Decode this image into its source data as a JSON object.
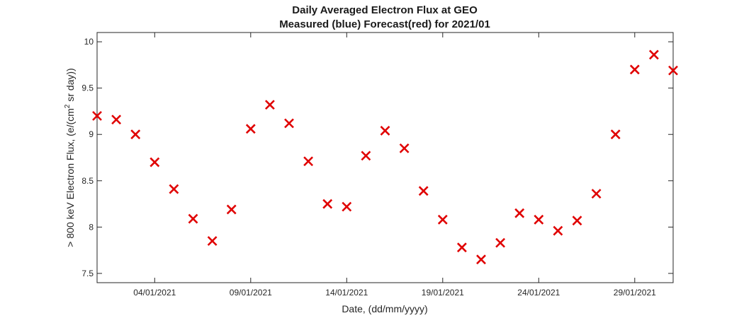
{
  "chart_data": {
    "type": "scatter",
    "title": "Daily Averaged Electron Flux at GEO",
    "subtitle": "Measured (blue) Forecast(red) for 2021/01",
    "xlabel": "Date, (dd/mm/yyyy)",
    "ylabel_parts": {
      "before_sup": "> 800 keV Electron Flux, (e/(cm",
      "sup": "2",
      "after_sup": " sr day))"
    },
    "xlim": [
      "01/01/2021",
      "31/01/2021"
    ],
    "ylim": [
      7.4,
      10.1
    ],
    "grid": false,
    "x_ticks": [
      "04/01/2021",
      "09/01/2021",
      "14/01/2021",
      "19/01/2021",
      "24/01/2021",
      "29/01/2021"
    ],
    "y_ticks": [
      "7.5",
      "8",
      "8.5",
      "9",
      "9.5",
      "10"
    ],
    "series": [
      {
        "color": "#e00000",
        "marker": "x",
        "x": [
          "01/01/2021",
          "02/01/2021",
          "03/01/2021",
          "04/01/2021",
          "05/01/2021",
          "06/01/2021",
          "07/01/2021",
          "08/01/2021",
          "09/01/2021",
          "10/01/2021",
          "11/01/2021",
          "12/01/2021",
          "13/01/2021",
          "14/01/2021",
          "15/01/2021",
          "16/01/2021",
          "17/01/2021",
          "18/01/2021",
          "19/01/2021",
          "20/01/2021",
          "21/01/2021",
          "22/01/2021",
          "23/01/2021",
          "24/01/2021",
          "25/01/2021",
          "26/01/2021",
          "27/01/2021",
          "28/01/2021",
          "29/01/2021",
          "30/01/2021",
          "31/01/2021"
        ],
        "y": [
          9.2,
          9.16,
          9.0,
          8.7,
          8.41,
          8.09,
          7.85,
          8.19,
          9.06,
          9.32,
          9.12,
          8.71,
          8.25,
          8.22,
          8.77,
          9.04,
          8.85,
          8.39,
          8.08,
          7.78,
          7.65,
          7.83,
          8.15,
          8.08,
          7.96,
          8.07,
          8.36,
          9.0,
          9.7,
          9.86,
          9.69
        ]
      }
    ]
  }
}
